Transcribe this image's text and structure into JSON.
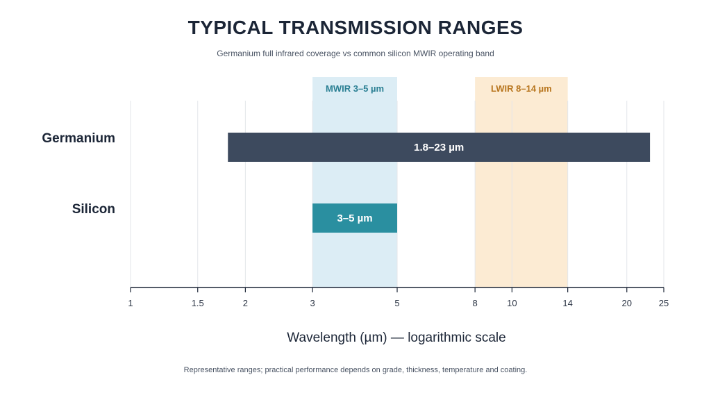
{
  "chart_data": {
    "type": "bar",
    "orientation": "horizontal-range",
    "title": "TYPICAL TRANSMISSION RANGES",
    "subtitle": "Germanium full infrared coverage vs common silicon MWIR operating band",
    "xlabel": "Wavelength (µm) — logarithmic scale",
    "x_scale": "log",
    "xlim": [
      1,
      25
    ],
    "x_ticks": [
      1,
      1.5,
      2,
      3,
      5,
      8,
      10,
      14,
      20,
      25
    ],
    "grid": true,
    "categories": [
      "Germanium",
      "Silicon"
    ],
    "ranges": [
      {
        "category": "Germanium",
        "start": 1.8,
        "end": 23,
        "label": "1.8–23 µm",
        "color": "#3d4a5e"
      },
      {
        "category": "Silicon",
        "start": 3,
        "end": 5,
        "label": "3–5 µm",
        "color": "#2a8fa0"
      }
    ],
    "bands": [
      {
        "label": "MWIR 3–5 µm",
        "start": 3,
        "end": 5,
        "fill": "#dcedf5",
        "text_color": "#2a7f93"
      },
      {
        "label": "LWIR 8–14 µm",
        "start": 8,
        "end": 14,
        "fill": "#fcebd3",
        "text_color": "#b8761f"
      }
    ]
  },
  "footnote": "Representative ranges; practical performance depends on grade, thickness, temperature and coating."
}
